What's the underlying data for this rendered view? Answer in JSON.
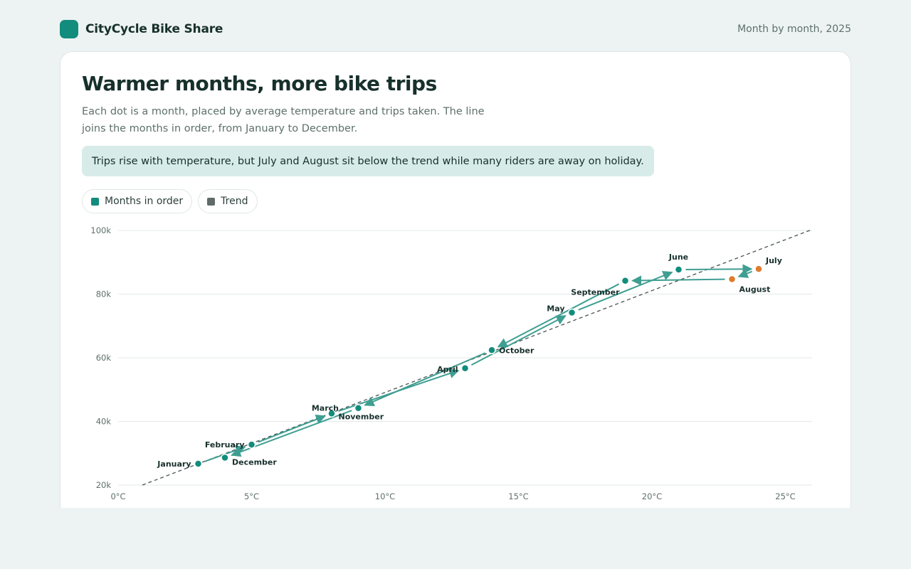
{
  "header": {
    "brand": "CityCycle Bike Share",
    "period": "Month by month, 2025"
  },
  "card": {
    "title": "Warmer months, more bike trips",
    "subtitle": "Each dot is a month, placed by average temperature and trips taken. The line joins the months in order, from January to December.",
    "callout": "Trips rise with temperature, but July and August sit below the trend while many riders are away on holiday."
  },
  "legend": [
    {
      "label": "Months in order",
      "color": "#128c7c"
    },
    {
      "label": "Trend",
      "color": "#5f6b69"
    }
  ],
  "colors": {
    "primary": "#128c7c",
    "line": "#3f9e92",
    "highlight": "#e07b2e",
    "trend": "#4a5553",
    "grid": "#e3e9e8"
  },
  "chart_data": {
    "type": "scatter",
    "connected": true,
    "xlabel": "",
    "ylabel": "",
    "xlim": [
      0,
      26
    ],
    "ylim": [
      20000,
      100000
    ],
    "x_ticks": [
      {
        "value": 0,
        "label": "0°C"
      },
      {
        "value": 5,
        "label": "5°C"
      },
      {
        "value": 10,
        "label": "10°C"
      },
      {
        "value": 15,
        "label": "15°C"
      },
      {
        "value": 20,
        "label": "20°C"
      },
      {
        "value": 25,
        "label": "25°C"
      }
    ],
    "y_ticks": [
      {
        "value": 20000,
        "label": "20k"
      },
      {
        "value": 40000,
        "label": "40k"
      },
      {
        "value": 60000,
        "label": "60k"
      },
      {
        "value": 80000,
        "label": "80k"
      },
      {
        "value": 100000,
        "label": "100k"
      }
    ],
    "grid": true,
    "points": [
      {
        "month": "January",
        "temp": 3.0,
        "trips": 26700,
        "highlight": false
      },
      {
        "month": "February",
        "temp": 5.0,
        "trips": 32700,
        "highlight": false
      },
      {
        "month": "March",
        "temp": 8.0,
        "trips": 42500,
        "highlight": false
      },
      {
        "month": "April",
        "temp": 13.0,
        "trips": 56700,
        "highlight": false
      },
      {
        "month": "May",
        "temp": 17.0,
        "trips": 74200,
        "highlight": false
      },
      {
        "month": "June",
        "temp": 21.0,
        "trips": 87700,
        "highlight": false
      },
      {
        "month": "July",
        "temp": 24.0,
        "trips": 87900,
        "highlight": true
      },
      {
        "month": "August",
        "temp": 23.0,
        "trips": 84700,
        "highlight": true
      },
      {
        "month": "September",
        "temp": 19.0,
        "trips": 84200,
        "highlight": false
      },
      {
        "month": "October",
        "temp": 14.0,
        "trips": 62400,
        "highlight": false
      },
      {
        "month": "November",
        "temp": 9.0,
        "trips": 44200,
        "highlight": false
      },
      {
        "month": "December",
        "temp": 4.0,
        "trips": 28600,
        "highlight": false
      }
    ],
    "trend": {
      "slope": 3200,
      "intercept": 17100
    }
  }
}
